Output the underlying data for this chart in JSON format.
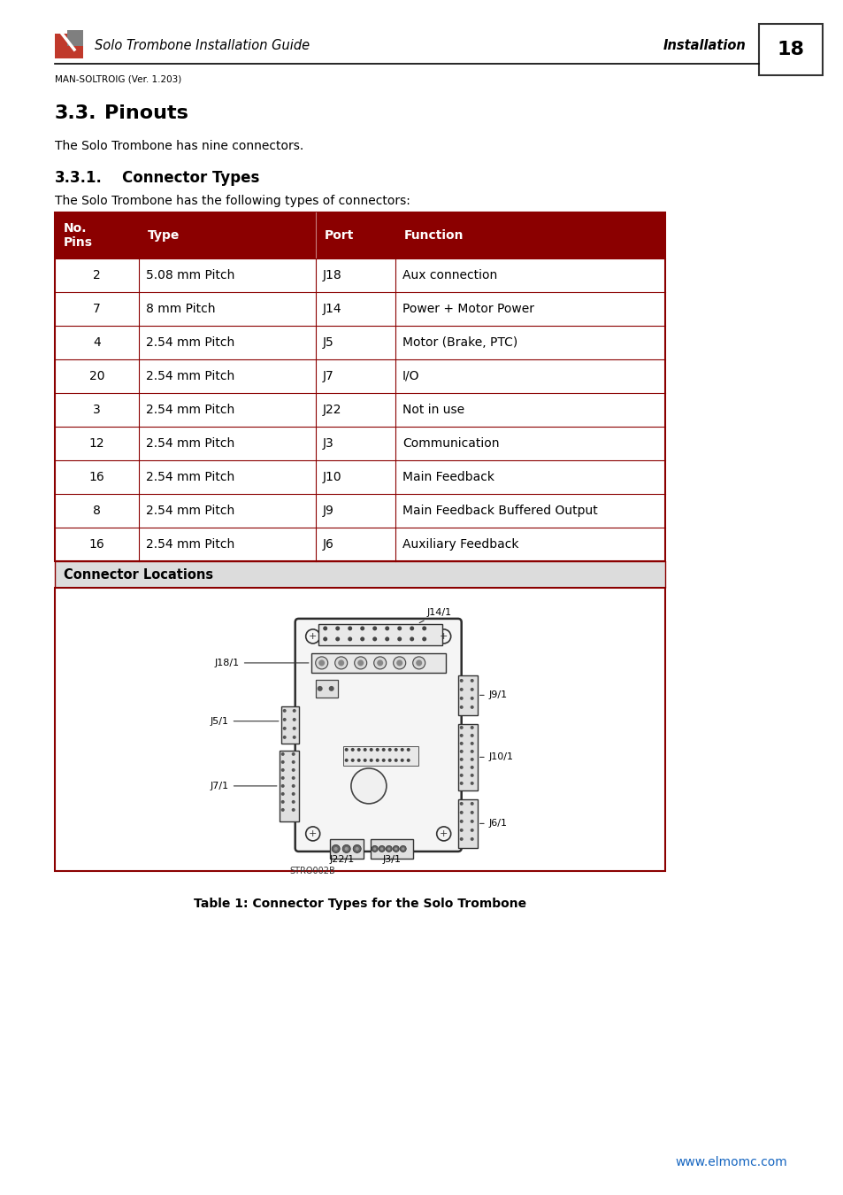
{
  "page_title": "Solo Trombone Installation Guide",
  "section_label": "Installation",
  "page_number": "18",
  "version": "MAN-SOLTROIG (Ver. 1.203)",
  "section_heading_num": "3.3.",
  "section_heading_txt": "Pinouts",
  "section_intro": "The Solo Trombone has nine connectors.",
  "subsection_heading_num": "3.3.1.",
  "subsection_heading_txt": "Connector Types",
  "subsection_intro": "The Solo Trombone has the following types of connectors:",
  "table_headers": [
    "No.\nPins",
    "Type",
    "Port",
    "Function"
  ],
  "table_rows": [
    [
      "2",
      "5.08 mm Pitch",
      "J18",
      "Aux connection"
    ],
    [
      "7",
      "8 mm Pitch",
      "J14",
      "Power + Motor Power"
    ],
    [
      "4",
      "2.54 mm Pitch",
      "J5",
      "Motor (Brake, PTC)"
    ],
    [
      "20",
      "2.54 mm Pitch",
      "J7",
      "I/O"
    ],
    [
      "3",
      "2.54 mm Pitch",
      "J22",
      "Not in use"
    ],
    [
      "12",
      "2.54 mm Pitch",
      "J3",
      "Communication"
    ],
    [
      "16",
      "2.54 mm Pitch",
      "J10",
      "Main Feedback"
    ],
    [
      "8",
      "2.54 mm Pitch",
      "J9",
      "Main Feedback Buffered Output"
    ],
    [
      "16",
      "2.54 mm Pitch",
      "J6",
      "Auxiliary Feedback"
    ]
  ],
  "connector_locations_label": "Connector Locations",
  "table_caption": "Table 1: Connector Types for the Solo Trombone",
  "footer_url": "www.elmomc.com",
  "header_color": "#8B0000",
  "border_color": "#8B0000",
  "header_text_color": "#FFFFFF",
  "body_text_color": "#000000",
  "conn_loc_bg": "#DCDCDC",
  "bg_color": "#FFFFFF"
}
